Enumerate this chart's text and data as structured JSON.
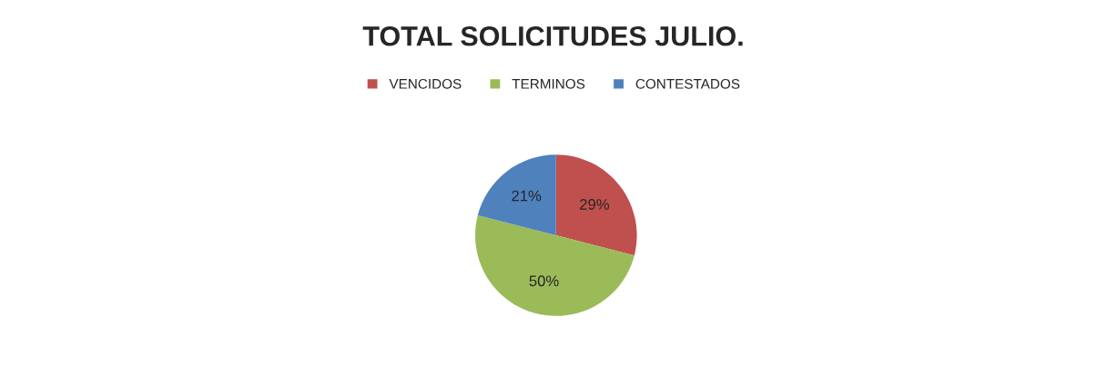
{
  "chart_data": {
    "type": "pie",
    "title": "TOTAL SOLICITUDES JULIO.",
    "categories": [
      "VENCIDOS",
      "TERMINOS",
      "CONTESTADOS"
    ],
    "values": [
      29,
      50,
      21
    ],
    "colors": [
      "#c0504d",
      "#9bbb59",
      "#4f81bd"
    ],
    "value_labels": [
      "29%",
      "50%",
      "21%"
    ],
    "legend": "top"
  }
}
